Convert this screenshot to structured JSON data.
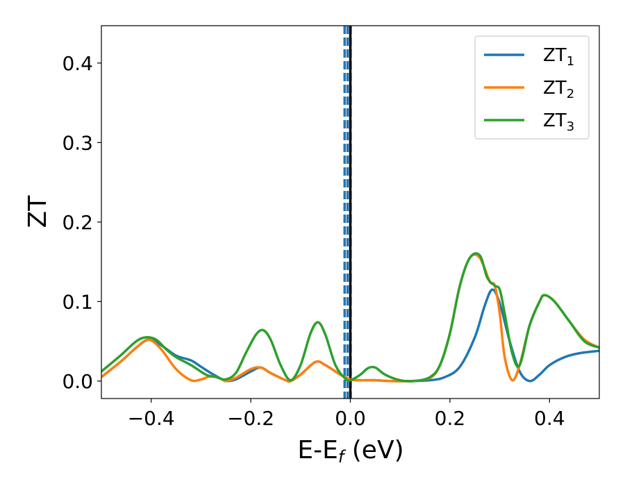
{
  "chart_data": {
    "type": "line",
    "xlabel": "E-E",
    "xlabel_sub": "f",
    "xlabel_unit": " (eV)",
    "ylabel": "ZT",
    "xlim": [
      -0.5,
      0.5
    ],
    "ylim": [
      -0.022,
      0.447
    ],
    "x_ticks": [
      -0.4,
      -0.2,
      0.0,
      0.2,
      0.4
    ],
    "x_tick_labels": [
      "−0.4",
      "−0.2",
      "0.0",
      "0.2",
      "0.4"
    ],
    "y_ticks": [
      0.0,
      0.1,
      0.2,
      0.3,
      0.4
    ],
    "y_tick_labels": [
      "0.0",
      "0.1",
      "0.2",
      "0.3",
      "0.4"
    ],
    "grid": false,
    "legend_position": "top-right",
    "reference_lines": [
      {
        "x": -0.0115,
        "color": "#1f77b4",
        "style": "dashed"
      },
      {
        "x": -0.0055,
        "color": "#1f77b4",
        "style": "dashed"
      },
      {
        "x": 0.0005,
        "color": "#1f77b4",
        "style": "dashed"
      },
      {
        "x": 0.0,
        "color": "#000000",
        "style": "solid"
      }
    ],
    "series": [
      {
        "name": "ZT",
        "name_sub": "1",
        "color": "#1f77b4",
        "x": [
          -0.5,
          -0.46,
          -0.43,
          -0.405,
          -0.38,
          -0.35,
          -0.32,
          -0.3,
          -0.28,
          -0.26,
          -0.25,
          -0.23,
          -0.2,
          -0.18,
          -0.16,
          -0.13,
          -0.12,
          -0.1,
          -0.07,
          -0.05,
          -0.02,
          0.0,
          0.02,
          0.05,
          0.08,
          0.12,
          0.16,
          0.19,
          0.22,
          0.25,
          0.27,
          0.285,
          0.3,
          0.32,
          0.34,
          0.36,
          0.38,
          0.4,
          0.43,
          0.46,
          0.5
        ],
        "y": [
          0.005,
          0.025,
          0.042,
          0.052,
          0.045,
          0.032,
          0.026,
          0.018,
          0.01,
          0.003,
          0.0,
          0.002,
          0.012,
          0.017,
          0.01,
          0.001,
          0.0,
          0.008,
          0.024,
          0.02,
          0.008,
          0.002,
          0.001,
          0.001,
          0.0,
          0.0,
          0.001,
          0.005,
          0.018,
          0.055,
          0.095,
          0.115,
          0.098,
          0.05,
          0.012,
          0.0,
          0.008,
          0.02,
          0.03,
          0.035,
          0.038
        ]
      },
      {
        "name": "ZT",
        "name_sub": "2",
        "color": "#ff7f0e",
        "x": [
          -0.5,
          -0.46,
          -0.43,
          -0.405,
          -0.38,
          -0.35,
          -0.32,
          -0.3,
          -0.28,
          -0.26,
          -0.25,
          -0.23,
          -0.2,
          -0.18,
          -0.16,
          -0.13,
          -0.12,
          -0.1,
          -0.07,
          -0.05,
          -0.02,
          0.0,
          0.02,
          0.05,
          0.08,
          0.12,
          0.16,
          0.18,
          0.2,
          0.22,
          0.24,
          0.26,
          0.28,
          0.29,
          0.3,
          0.31,
          0.325,
          0.34,
          0.36,
          0.38,
          0.39,
          0.41,
          0.44,
          0.47,
          0.5
        ],
        "y": [
          0.005,
          0.025,
          0.042,
          0.052,
          0.04,
          0.015,
          0.001,
          0.002,
          0.006,
          0.003,
          0.0,
          0.004,
          0.015,
          0.017,
          0.01,
          0.001,
          0.0,
          0.008,
          0.024,
          0.02,
          0.008,
          0.002,
          0.001,
          0.001,
          0.0,
          0.0,
          0.004,
          0.02,
          0.06,
          0.12,
          0.155,
          0.155,
          0.125,
          0.12,
          0.085,
          0.03,
          0.001,
          0.02,
          0.07,
          0.1,
          0.108,
          0.1,
          0.075,
          0.052,
          0.042
        ]
      },
      {
        "name": "ZT",
        "name_sub": "3",
        "color": "#2ca02c",
        "x": [
          -0.5,
          -0.46,
          -0.43,
          -0.41,
          -0.39,
          -0.37,
          -0.35,
          -0.32,
          -0.29,
          -0.27,
          -0.25,
          -0.23,
          -0.21,
          -0.19,
          -0.175,
          -0.16,
          -0.14,
          -0.12,
          -0.1,
          -0.08,
          -0.065,
          -0.05,
          -0.03,
          -0.01,
          0.0,
          0.02,
          0.035,
          0.05,
          0.07,
          0.1,
          0.13,
          0.16,
          0.18,
          0.2,
          0.22,
          0.24,
          0.26,
          0.275,
          0.29,
          0.3,
          0.31,
          0.325,
          0.34,
          0.36,
          0.38,
          0.39,
          0.41,
          0.44,
          0.47,
          0.5
        ],
        "y": [
          0.012,
          0.033,
          0.05,
          0.055,
          0.052,
          0.04,
          0.03,
          0.02,
          0.008,
          0.005,
          0.002,
          0.01,
          0.035,
          0.058,
          0.064,
          0.052,
          0.02,
          0.001,
          0.02,
          0.06,
          0.074,
          0.058,
          0.02,
          0.003,
          0.001,
          0.008,
          0.016,
          0.017,
          0.008,
          0.001,
          0.0,
          0.005,
          0.02,
          0.06,
          0.12,
          0.155,
          0.158,
          0.13,
          0.12,
          0.115,
          0.085,
          0.035,
          0.02,
          0.07,
          0.1,
          0.108,
          0.1,
          0.075,
          0.05,
          0.042
        ]
      }
    ]
  }
}
